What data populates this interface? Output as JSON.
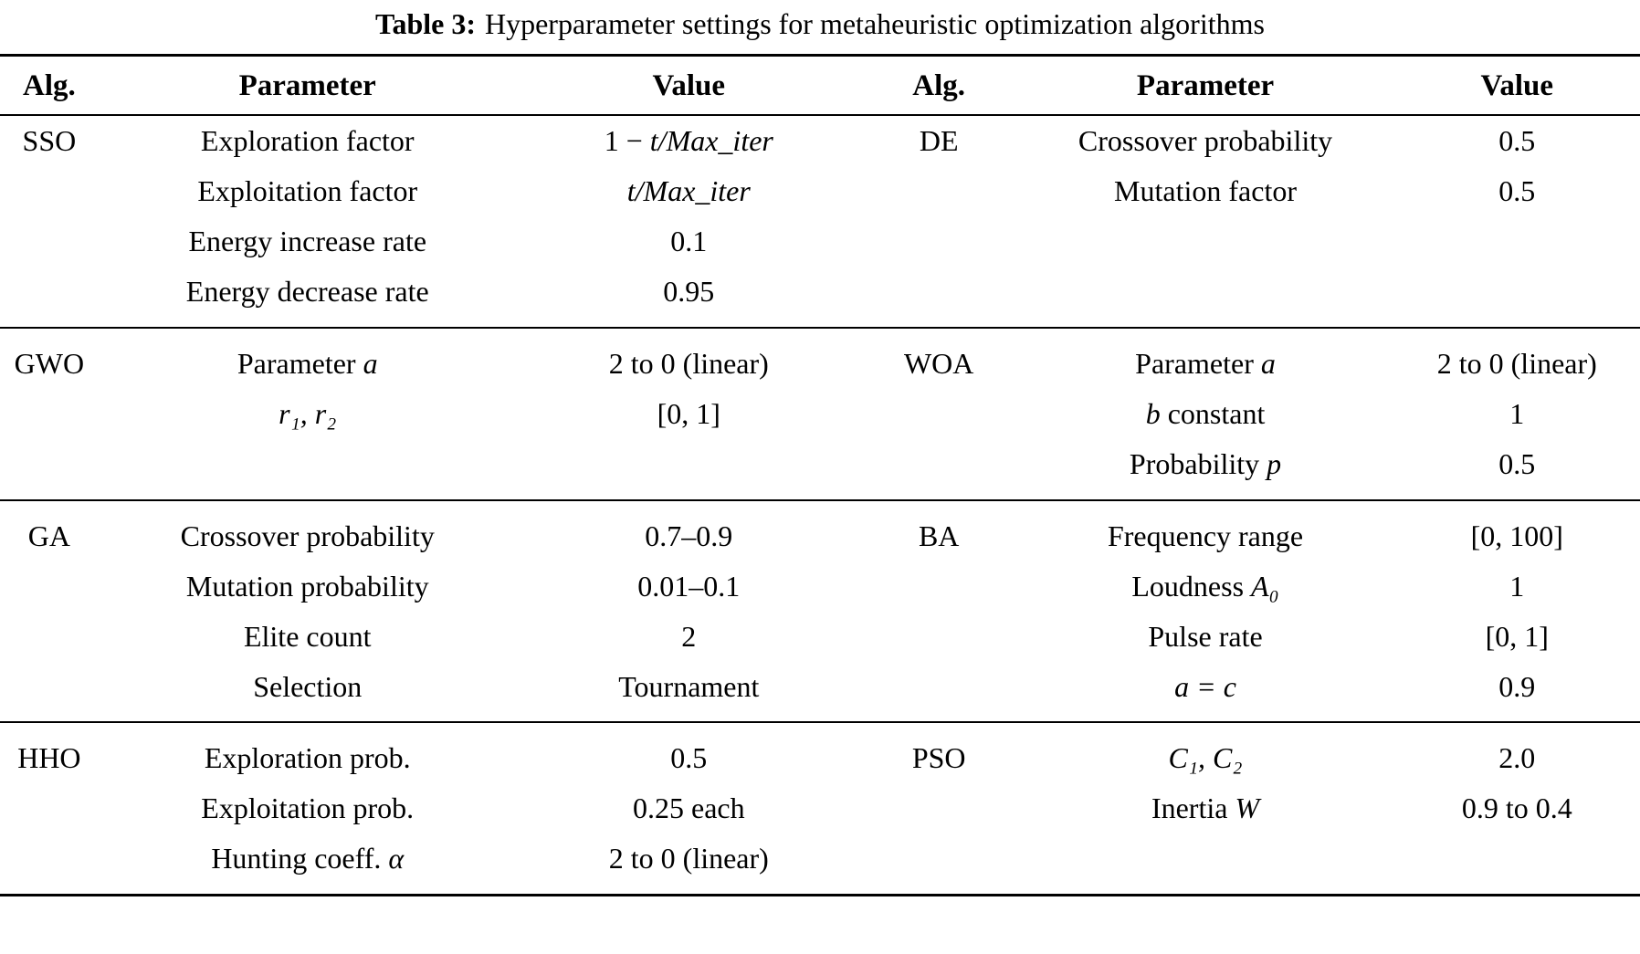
{
  "title": {
    "label": "Table 3:",
    "caption": "Hyperparameter settings for metaheuristic optimization algorithms"
  },
  "header": [
    "Alg.",
    "Parameter",
    "Value",
    "Alg.",
    "Parameter",
    "Value"
  ],
  "groups": [
    {
      "rows": [
        [
          [
            [
              "SSO",
              0
            ]
          ],
          [
            [
              "Exploration factor",
              0
            ]
          ],
          [
            [
              "1 − ",
              0
            ],
            [
              "t/Max_iter",
              1
            ]
          ],
          [
            [
              "DE",
              0
            ]
          ],
          [
            [
              "Crossover probability",
              0
            ]
          ],
          [
            [
              "0.5",
              0
            ]
          ]
        ],
        [
          [],
          [
            [
              "Exploitation factor",
              0
            ]
          ],
          [
            [
              "t/Max_iter",
              1
            ]
          ],
          [],
          [
            [
              "Mutation factor",
              0
            ]
          ],
          [
            [
              "0.5",
              0
            ]
          ]
        ],
        [
          [],
          [
            [
              "Energy increase rate",
              0
            ]
          ],
          [
            [
              "0.1",
              0
            ]
          ],
          [],
          [],
          []
        ],
        [
          [],
          [
            [
              "Energy decrease rate",
              0
            ]
          ],
          [
            [
              "0.95",
              0
            ]
          ],
          [],
          [],
          []
        ]
      ]
    },
    {
      "rows": [
        [
          [
            [
              "GWO",
              0
            ]
          ],
          [
            [
              "Parameter ",
              0
            ],
            [
              "a",
              1
            ]
          ],
          [
            [
              "2 to 0 (linear)",
              0
            ]
          ],
          [
            [
              "WOA",
              0
            ]
          ],
          [
            [
              "Parameter ",
              0
            ],
            [
              "a",
              1
            ]
          ],
          [
            [
              "2 to 0 (linear)",
              0
            ]
          ]
        ],
        [
          [],
          [
            [
              "r₁, r₂",
              1
            ]
          ],
          [
            [
              "[0, 1]",
              0
            ]
          ],
          [],
          [
            [
              "b",
              1
            ],
            [
              " constant",
              0
            ]
          ],
          [
            [
              "1",
              0
            ]
          ]
        ],
        [
          [],
          [],
          [],
          [],
          [
            [
              "Probability ",
              0
            ],
            [
              "p",
              1
            ]
          ],
          [
            [
              "0.5",
              0
            ]
          ]
        ]
      ]
    },
    {
      "rows": [
        [
          [
            [
              "GA",
              0
            ]
          ],
          [
            [
              "Crossover probability",
              0
            ]
          ],
          [
            [
              "0.7–0.9",
              0
            ]
          ],
          [
            [
              "BA",
              0
            ]
          ],
          [
            [
              "Frequency range",
              0
            ]
          ],
          [
            [
              "[0, 100]",
              0
            ]
          ]
        ],
        [
          [],
          [
            [
              "Mutation probability",
              0
            ]
          ],
          [
            [
              "0.01–0.1",
              0
            ]
          ],
          [],
          [
            [
              "Loudness ",
              0
            ],
            [
              "A₀",
              1
            ]
          ],
          [
            [
              "1",
              0
            ]
          ]
        ],
        [
          [],
          [
            [
              "Elite count",
              0
            ]
          ],
          [
            [
              "2",
              0
            ]
          ],
          [],
          [
            [
              "Pulse rate",
              0
            ]
          ],
          [
            [
              "[0, 1]",
              0
            ]
          ]
        ],
        [
          [],
          [
            [
              "Selection",
              0
            ]
          ],
          [
            [
              "Tournament",
              0
            ]
          ],
          [],
          [
            [
              "a = c",
              1
            ]
          ],
          [
            [
              "0.9",
              0
            ]
          ]
        ]
      ]
    },
    {
      "rows": [
        [
          [
            [
              "HHO",
              0
            ]
          ],
          [
            [
              "Exploration prob.",
              0
            ]
          ],
          [
            [
              "0.5",
              0
            ]
          ],
          [
            [
              "PSO",
              0
            ]
          ],
          [
            [
              "C₁, C₂",
              1
            ]
          ],
          [
            [
              "2.0",
              0
            ]
          ]
        ],
        [
          [],
          [
            [
              "Exploitation prob.",
              0
            ]
          ],
          [
            [
              "0.25 each",
              0
            ]
          ],
          [],
          [
            [
              "Inertia ",
              0
            ],
            [
              "W",
              1
            ]
          ],
          [
            [
              "0.9 to 0.4",
              0
            ]
          ]
        ],
        [
          [],
          [
            [
              "Hunting coeff. ",
              0
            ],
            [
              "α",
              1
            ]
          ],
          [
            [
              "2 to 0 (linear)",
              0
            ]
          ],
          [],
          [],
          []
        ]
      ]
    }
  ]
}
